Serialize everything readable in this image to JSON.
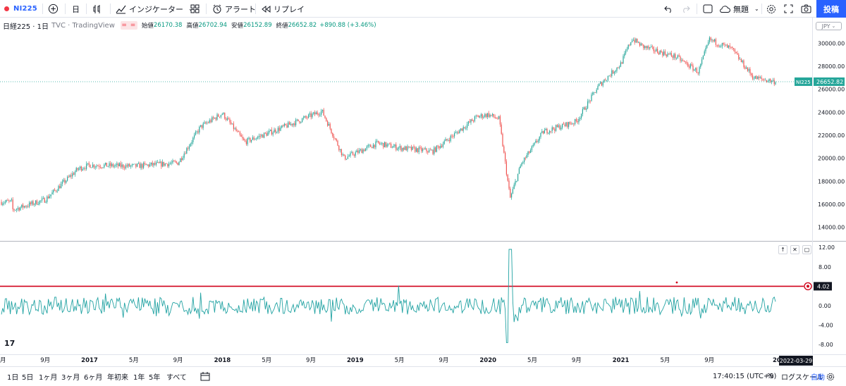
{
  "toolbar": {
    "symbol": "NI225",
    "interval": "日",
    "indicators_label": "インジケーター",
    "alert_label": "アラート",
    "replay_label": "リプレイ",
    "layout_name": "無題",
    "publish_label": "投稿"
  },
  "legend": {
    "title": "日経225 · 1日",
    "source": "TVC · TradingView",
    "flag": "= =",
    "open_label": "始値",
    "open": "26170.38",
    "high_label": "高値",
    "high": "26702.94",
    "low_label": "安値",
    "low": "26152.89",
    "close_label": "終値",
    "close": "26652.82",
    "change": "+890.88 (+3.46%)",
    "currency": "JPY"
  },
  "colors": {
    "up": "#26a69a",
    "down": "#ef5350",
    "osc": "#22a3a3",
    "level": "#d0021b",
    "accent": "#2962ff"
  },
  "icons": [
    "add-symbol-icon",
    "bar-style-icon",
    "indicators-icon",
    "templates-icon",
    "alert-icon",
    "replay-icon",
    "undo-icon",
    "redo-icon",
    "layout-icon",
    "cloud-icon",
    "settings-icon",
    "fullscreen-icon",
    "camera-icon",
    "gear-icon",
    "compare-date-icon"
  ],
  "bottom": {
    "ranges": [
      "1日",
      "5日",
      "1ヶ月",
      "3ヶ月",
      "6ヶ月",
      "年初来",
      "1年",
      "5年",
      "すべて"
    ],
    "time": "17:40:15 (UTC+9)",
    "percent": "%",
    "log_scale": "ログスケール",
    "auto": "自動"
  },
  "chart_data": [
    {
      "type": "candlestick",
      "title": "日経225 · 1日",
      "series": [
        {
          "name": "NI225",
          "last_value": 26652.82
        }
      ],
      "y_ticks": [
        14000,
        16000,
        18000,
        20000,
        22000,
        24000,
        26000,
        28000,
        30000
      ],
      "y_tick_labels": [
        "14000.00",
        "16000.00",
        "18000.00",
        "20000.00",
        "22000.00",
        "24000.00",
        "26000.00",
        "28000.00",
        "30000.00"
      ],
      "price_tag": {
        "label": "NI225",
        "value": "26652.82"
      },
      "x_ticks": [
        "9月",
        "2017",
        "5月",
        "9月",
        "2018",
        "5月",
        "9月",
        "2019",
        "5月",
        "9月",
        "2020",
        "5月",
        "9月",
        "2021",
        "5月",
        "9月"
      ],
      "x_tick_partial_left": "月",
      "x_tick_partial_right": "20",
      "crosshair_date": "2022-03-29",
      "x": [
        "2016-06",
        "2016-09",
        "2016-12",
        "2017-01",
        "2017-05",
        "2017-09",
        "2017-11",
        "2018-01",
        "2018-03",
        "2018-06",
        "2018-10",
        "2018-12",
        "2019-03",
        "2019-05",
        "2019-08",
        "2019-12",
        "2020-01",
        "2020-02",
        "2020-03",
        "2020-04",
        "2020-06",
        "2020-09",
        "2020-11",
        "2021-01",
        "2021-02",
        "2021-03",
        "2021-06",
        "2021-08",
        "2021-09",
        "2021-11",
        "2022-01",
        "2022-03"
      ],
      "close": [
        15500,
        16400,
        19100,
        19400,
        19300,
        19600,
        22700,
        23900,
        21400,
        22500,
        24100,
        20000,
        21300,
        20900,
        20600,
        23600,
        23800,
        23400,
        16500,
        19500,
        22300,
        23200,
        26300,
        28200,
        30400,
        29700,
        28800,
        27500,
        30300,
        29500,
        27000,
        26650
      ]
    },
    {
      "type": "line",
      "series": [
        {
          "name": "oscillator",
          "last_value": 4.02
        }
      ],
      "y_ticks": [
        -8,
        -4,
        0,
        4,
        8,
        12
      ],
      "y_tick_labels": [
        "-8.00",
        "-4.00",
        "0.00",
        "4.00",
        "8.00",
        "12.00"
      ],
      "level_line": 4,
      "value_tag": "4.02",
      "notable_points": [
        {
          "x": "2020-03",
          "y": 11.6
        },
        {
          "x": "2020-03",
          "y": -7.6
        }
      ]
    }
  ]
}
